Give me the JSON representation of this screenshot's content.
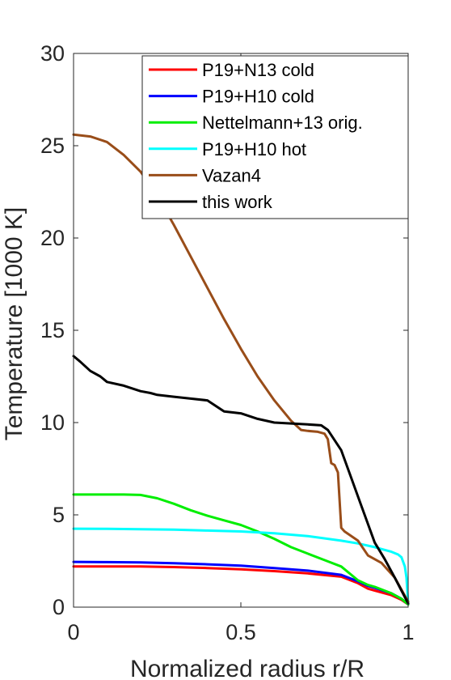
{
  "chart_data": {
    "type": "line",
    "title": "",
    "xlabel": "Normalized radius r/R",
    "ylabel": "Temperature [1000 K]",
    "xlim": [
      0,
      1
    ],
    "ylim": [
      0,
      30
    ],
    "xticks": [
      0,
      0.5,
      1
    ],
    "xtick_labels": [
      "0",
      "0.5",
      "1"
    ],
    "yticks": [
      0,
      5,
      10,
      15,
      20,
      25,
      30
    ],
    "ytick_labels": [
      "0",
      "5",
      "10",
      "15",
      "20",
      "25",
      "30"
    ],
    "grid": false,
    "legend_position": "top-right",
    "series": [
      {
        "name": "P19+N13 cold",
        "color": "#ff0000",
        "x": [
          0,
          0.1,
          0.2,
          0.3,
          0.4,
          0.5,
          0.6,
          0.7,
          0.8,
          0.85,
          0.88,
          0.9,
          0.95,
          0.98,
          1.0
        ],
        "y": [
          2.2,
          2.2,
          2.2,
          2.17,
          2.12,
          2.05,
          1.95,
          1.83,
          1.65,
          1.3,
          1.0,
          0.9,
          0.65,
          0.4,
          0.15
        ]
      },
      {
        "name": "P19+H10 cold",
        "color": "#0000ff",
        "x": [
          0,
          0.1,
          0.2,
          0.3,
          0.4,
          0.5,
          0.6,
          0.7,
          0.8,
          0.85,
          0.88,
          0.9,
          0.95,
          0.98,
          1.0
        ],
        "y": [
          2.45,
          2.44,
          2.42,
          2.38,
          2.32,
          2.25,
          2.12,
          1.98,
          1.75,
          1.4,
          1.15,
          1.05,
          0.75,
          0.45,
          0.15
        ]
      },
      {
        "name": "Nettelmann+13 orig.",
        "color": "#00ee00",
        "x": [
          0,
          0.05,
          0.1,
          0.15,
          0.2,
          0.25,
          0.3,
          0.35,
          0.4,
          0.45,
          0.5,
          0.55,
          0.6,
          0.65,
          0.7,
          0.75,
          0.8,
          0.85,
          0.88,
          0.9,
          0.95,
          0.98,
          1.0
        ],
        "y": [
          6.1,
          6.1,
          6.1,
          6.1,
          6.08,
          5.9,
          5.6,
          5.25,
          4.95,
          4.7,
          4.45,
          4.1,
          3.7,
          3.25,
          2.9,
          2.55,
          2.2,
          1.45,
          1.2,
          1.1,
          0.75,
          0.45,
          0.15
        ]
      },
      {
        "name": "P19+H10 hot",
        "color": "#00ffff",
        "x": [
          0,
          0.1,
          0.2,
          0.3,
          0.4,
          0.5,
          0.6,
          0.7,
          0.8,
          0.85,
          0.9,
          0.95,
          0.97,
          0.98,
          0.99,
          0.995,
          1.0
        ],
        "y": [
          4.25,
          4.24,
          4.22,
          4.2,
          4.15,
          4.1,
          4.0,
          3.85,
          3.6,
          3.45,
          3.25,
          3.0,
          2.85,
          2.7,
          2.2,
          1.6,
          0.2
        ]
      },
      {
        "name": "Vazan4",
        "color": "#994d19",
        "x": [
          0,
          0.05,
          0.1,
          0.15,
          0.2,
          0.25,
          0.3,
          0.35,
          0.4,
          0.45,
          0.5,
          0.55,
          0.6,
          0.65,
          0.68,
          0.7,
          0.73,
          0.75,
          0.76,
          0.77,
          0.78,
          0.79,
          0.8,
          0.81,
          0.85,
          0.88,
          0.92,
          0.96,
          1.0
        ],
        "y": [
          25.6,
          25.5,
          25.2,
          24.5,
          23.6,
          22.3,
          20.7,
          19.0,
          17.3,
          15.6,
          14.0,
          12.5,
          11.2,
          10.1,
          9.6,
          9.55,
          9.5,
          9.4,
          9.1,
          7.8,
          7.7,
          7.3,
          4.3,
          4.1,
          3.6,
          2.8,
          2.4,
          1.6,
          0.3
        ]
      },
      {
        "name": "this work",
        "color": "#000000",
        "x": [
          0,
          0.02,
          0.05,
          0.08,
          0.1,
          0.15,
          0.2,
          0.23,
          0.25,
          0.3,
          0.35,
          0.4,
          0.45,
          0.5,
          0.55,
          0.6,
          0.65,
          0.7,
          0.74,
          0.76,
          0.8,
          0.83,
          0.86,
          0.88,
          0.9,
          0.93,
          0.96,
          0.98,
          1.0
        ],
        "y": [
          13.6,
          13.3,
          12.8,
          12.5,
          12.2,
          12.0,
          11.7,
          11.6,
          11.5,
          11.4,
          11.3,
          11.2,
          10.6,
          10.5,
          10.2,
          10.0,
          9.95,
          9.9,
          9.85,
          9.6,
          8.5,
          7.0,
          5.5,
          4.5,
          3.5,
          2.6,
          1.6,
          0.9,
          0.2
        ]
      }
    ]
  }
}
